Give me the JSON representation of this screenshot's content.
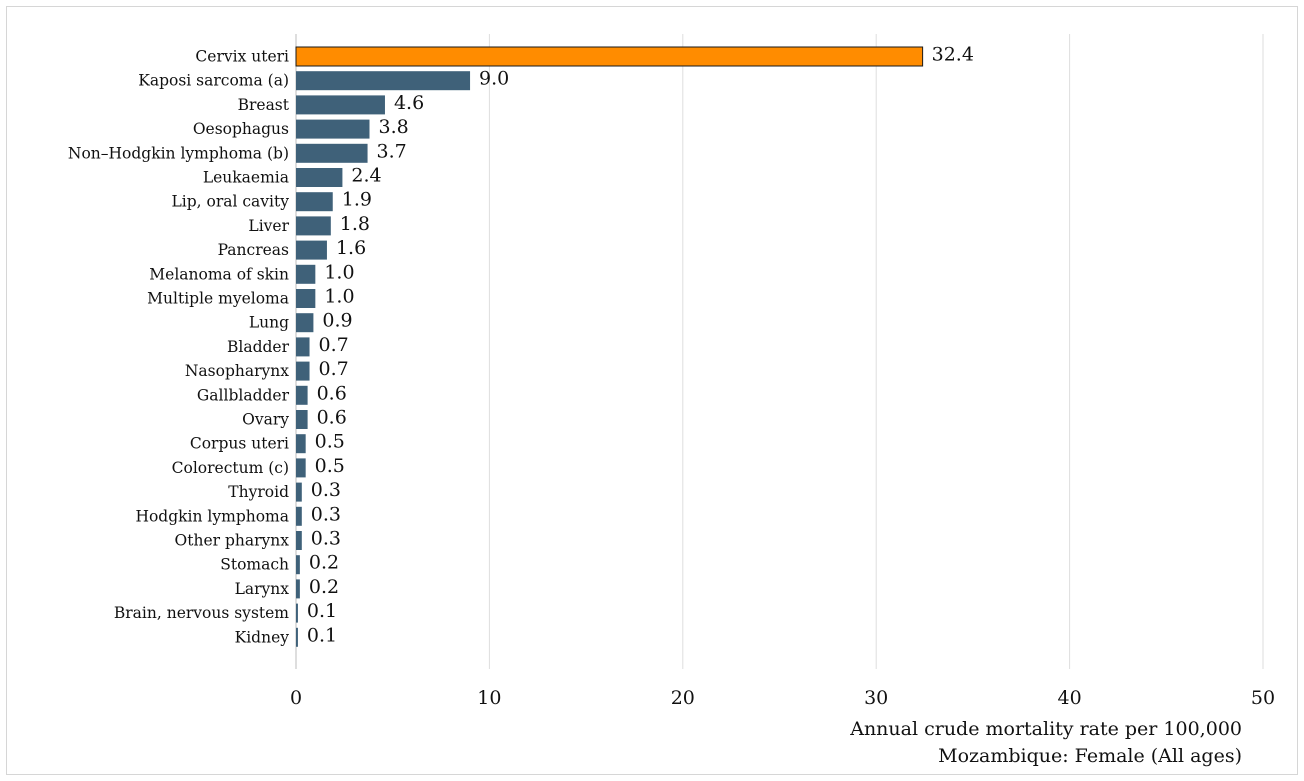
{
  "chart_data": {
    "type": "bar",
    "orientation": "horizontal",
    "categories": [
      "Cervix uteri",
      "Kaposi sarcoma (a)",
      "Breast",
      "Oesophagus",
      "Non–Hodgkin lymphoma (b)",
      "Leukaemia",
      "Lip, oral cavity",
      "Liver",
      "Pancreas",
      "Melanoma of skin",
      "Multiple myeloma",
      "Lung",
      "Bladder",
      "Nasopharynx",
      "Gallbladder",
      "Ovary",
      "Corpus uteri",
      "Colorectum (c)",
      "Thyroid",
      "Hodgkin lymphoma",
      "Other pharynx",
      "Stomach",
      "Larynx",
      "Brain, nervous system",
      "Kidney"
    ],
    "values": [
      32.4,
      9.0,
      4.6,
      3.8,
      3.7,
      2.4,
      1.9,
      1.8,
      1.6,
      1.0,
      1.0,
      0.9,
      0.7,
      0.7,
      0.6,
      0.6,
      0.5,
      0.5,
      0.3,
      0.3,
      0.3,
      0.2,
      0.2,
      0.1,
      0.1
    ],
    "value_labels": [
      "32.4",
      "9.0",
      "4.6",
      "3.8",
      "3.7",
      "2.4",
      "1.9",
      "1.8",
      "1.6",
      "1.0",
      "1.0",
      "0.9",
      "0.7",
      "0.7",
      "0.6",
      "0.6",
      "0.5",
      "0.5",
      "0.3",
      "0.3",
      "0.3",
      "0.2",
      "0.2",
      "0.1",
      "0.1"
    ],
    "xlim": [
      0,
      50
    ],
    "xticks": [
      0,
      10,
      20,
      30,
      40,
      50
    ],
    "xlabel": "Annual crude mortality rate per 100,000",
    "subtitle": "Mozambique: Female (All ages)",
    "grid": true,
    "legend": "none",
    "colors": {
      "highlight": "#ff8c00",
      "bar": "#3f6179",
      "bar_outline": "#1a1a1a",
      "grid": "#dedede"
    },
    "highlight_index": 0
  }
}
